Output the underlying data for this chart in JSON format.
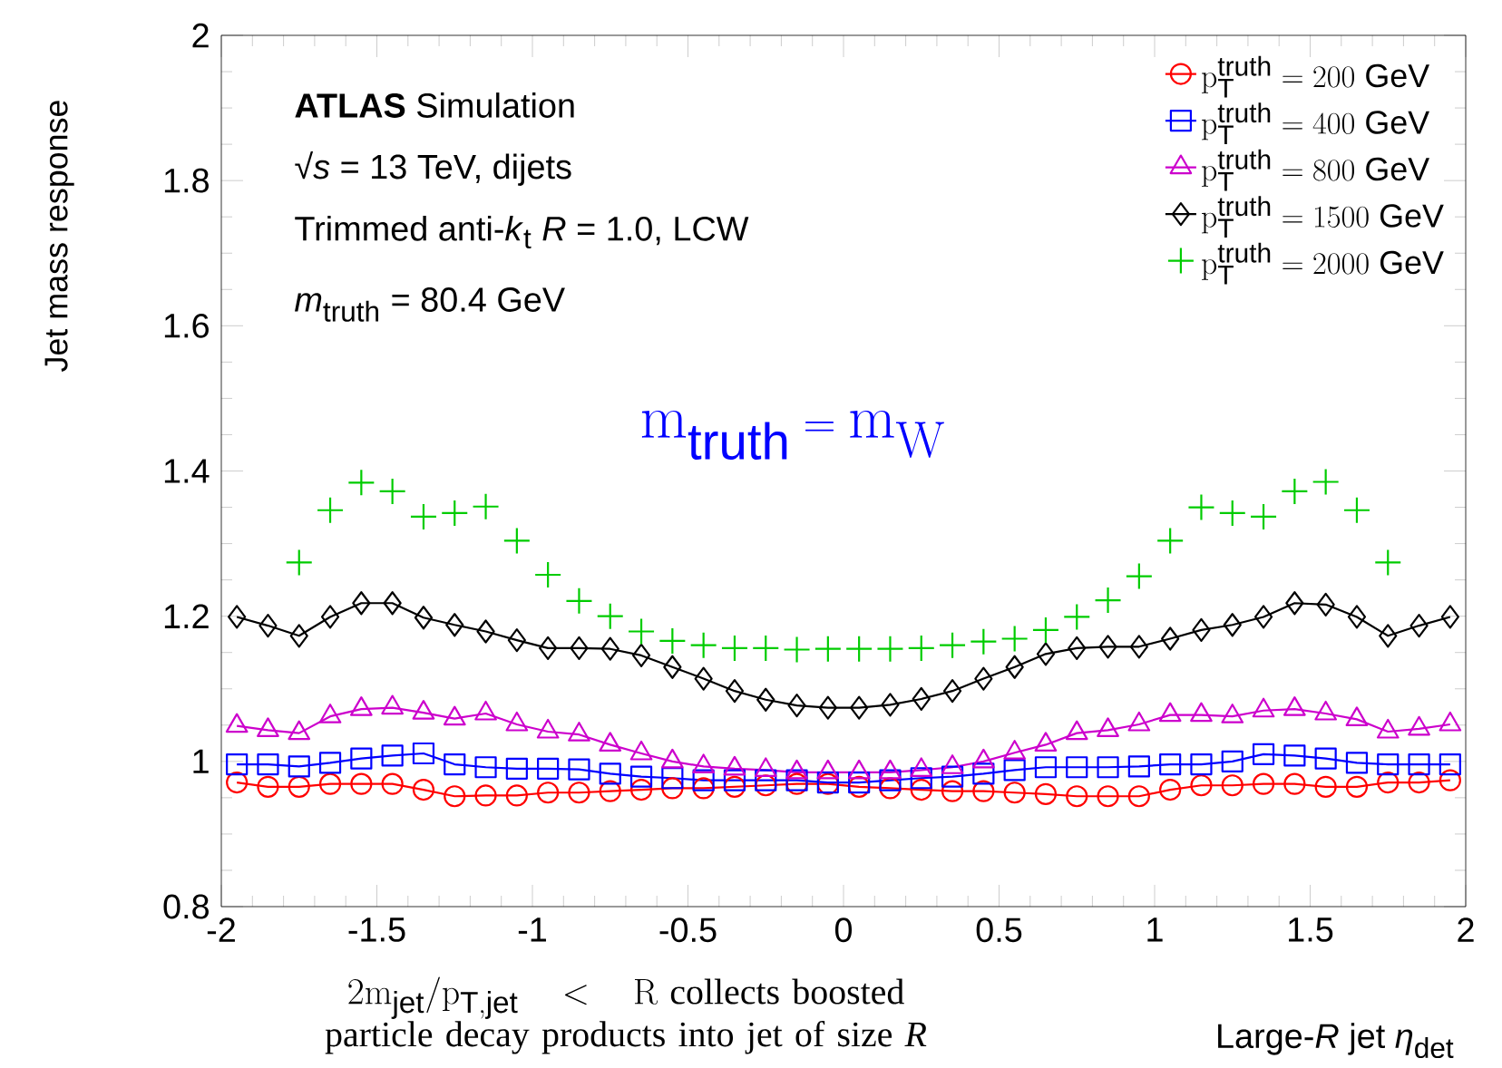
{
  "chart_data": {
    "type": "line",
    "line_style": "solid",
    "xlabel": "Large-*R* jet *η*$_{det}$",
    "ylabel": "Jet mass response",
    "annotations": [
      "**ATLAS** Simulation",
      "√*s* = 13 TeV, dijets",
      "Trimmed anti-*k*$_{t}$ *R* = 1.0, LCW",
      "*m*$_{truth}$ = 80.4 GeV",
      "m_{\\mathrm{truth}} = m_{W}",
      "2m_{\\mathrm{jet}}/p_{\\mathrm{T,jet}} < R",
      "collects boosted particle decay products into jet of size *R*"
    ],
    "x": [
      -1.95,
      -1.85,
      -1.75,
      -1.65,
      -1.55,
      -1.45,
      -1.35,
      -1.25,
      -1.15,
      -1.05,
      -0.95,
      -0.85,
      -0.75,
      -0.65,
      -0.55,
      -0.45,
      -0.35,
      -0.25,
      -0.15,
      -0.05,
      0.05,
      0.15,
      0.25,
      0.35,
      0.45,
      0.55,
      0.65,
      0.75,
      0.85,
      0.95,
      1.05,
      1.15,
      1.25,
      1.35,
      1.45,
      1.55,
      1.65,
      1.75,
      1.85,
      1.95
    ],
    "series": [
      {
        "name": "p_{\\mathrm{T}}^{\\mathrm{truth}} = 200\\ \\mathrm{GeV}",
        "color": "#ff0000",
        "marker": "circle",
        "values": [
          0.971,
          0.965,
          0.965,
          0.969,
          0.969,
          0.969,
          0.961,
          0.952,
          0.953,
          0.953,
          0.957,
          0.957,
          0.959,
          0.961,
          0.963,
          0.963,
          0.965,
          0.967,
          0.969,
          0.969,
          0.965,
          0.963,
          0.961,
          0.959,
          0.959,
          0.957,
          0.955,
          0.952,
          0.952,
          0.952,
          0.961,
          0.967,
          0.967,
          0.969,
          0.969,
          0.965,
          0.965,
          0.971,
          0.971,
          0.974
        ]
      },
      {
        "name": "p_{\\mathrm{T}}^{\\mathrm{truth}} = 400\\ \\mathrm{GeV}",
        "color": "#0000ff",
        "marker": "square",
        "values": [
          0.996,
          0.996,
          0.993,
          0.998,
          1.004,
          1.008,
          1.011,
          0.996,
          0.992,
          0.99,
          0.99,
          0.989,
          0.983,
          0.979,
          0.977,
          0.974,
          0.974,
          0.974,
          0.974,
          0.971,
          0.971,
          0.974,
          0.977,
          0.979,
          0.983,
          0.988,
          0.992,
          0.992,
          0.992,
          0.993,
          0.996,
          0.996,
          1.0,
          1.01,
          1.008,
          1.004,
          0.998,
          0.996,
          0.996,
          0.996
        ]
      },
      {
        "name": "p_{\\mathrm{T}}^{\\mathrm{truth}} = 800\\ \\mathrm{GeV}",
        "color": "#cc00cc",
        "marker": "triangle",
        "values": [
          1.049,
          1.043,
          1.039,
          1.062,
          1.072,
          1.074,
          1.067,
          1.059,
          1.066,
          1.051,
          1.041,
          1.037,
          1.023,
          1.011,
          1.0,
          0.993,
          0.99,
          0.988,
          0.985,
          0.985,
          0.985,
          0.985,
          0.988,
          0.992,
          1.0,
          1.012,
          1.023,
          1.039,
          1.043,
          1.051,
          1.064,
          1.064,
          1.062,
          1.07,
          1.072,
          1.066,
          1.058,
          1.041,
          1.045,
          1.051
        ]
      },
      {
        "name": "p_{\\mathrm{T}}^{\\mathrm{truth}} = 1500\\ \\mathrm{GeV}",
        "color": "#000000",
        "marker": "diamond",
        "values": [
          1.199,
          1.187,
          1.173,
          1.199,
          1.218,
          1.218,
          1.198,
          1.188,
          1.179,
          1.167,
          1.156,
          1.156,
          1.155,
          1.146,
          1.13,
          1.114,
          1.097,
          1.085,
          1.077,
          1.074,
          1.074,
          1.078,
          1.086,
          1.097,
          1.114,
          1.13,
          1.148,
          1.156,
          1.158,
          1.158,
          1.169,
          1.181,
          1.188,
          1.199,
          1.218,
          1.216,
          1.199,
          1.173,
          1.187,
          1.199
        ]
      },
      {
        "name": "p_{\\mathrm{T}}^{\\mathrm{truth}} = 2000\\ \\mathrm{GeV}",
        "color": "#00cc00",
        "marker": "cross",
        "type": "scatter",
        "values": [
          null,
          null,
          1.274,
          1.346,
          1.384,
          1.372,
          1.337,
          1.342,
          1.351,
          1.304,
          1.257,
          1.221,
          1.2,
          1.179,
          1.166,
          1.16,
          1.156,
          1.156,
          1.154,
          1.155,
          1.155,
          1.155,
          1.156,
          1.16,
          1.165,
          1.169,
          1.181,
          1.199,
          1.222,
          1.255,
          1.304,
          1.35,
          1.342,
          1.337,
          1.372,
          1.385,
          1.346,
          1.274,
          null,
          null
        ]
      }
    ],
    "xlim": [
      -2,
      2
    ],
    "ylim": [
      0.8,
      2
    ],
    "xticks": [
      -2,
      -1.5,
      -1,
      -0.5,
      0,
      0.5,
      1,
      1.5,
      2
    ],
    "yticks": [
      0.8,
      1,
      1.2,
      1.4,
      1.6,
      1.8,
      2
    ],
    "grid": false,
    "legend": "top right"
  }
}
